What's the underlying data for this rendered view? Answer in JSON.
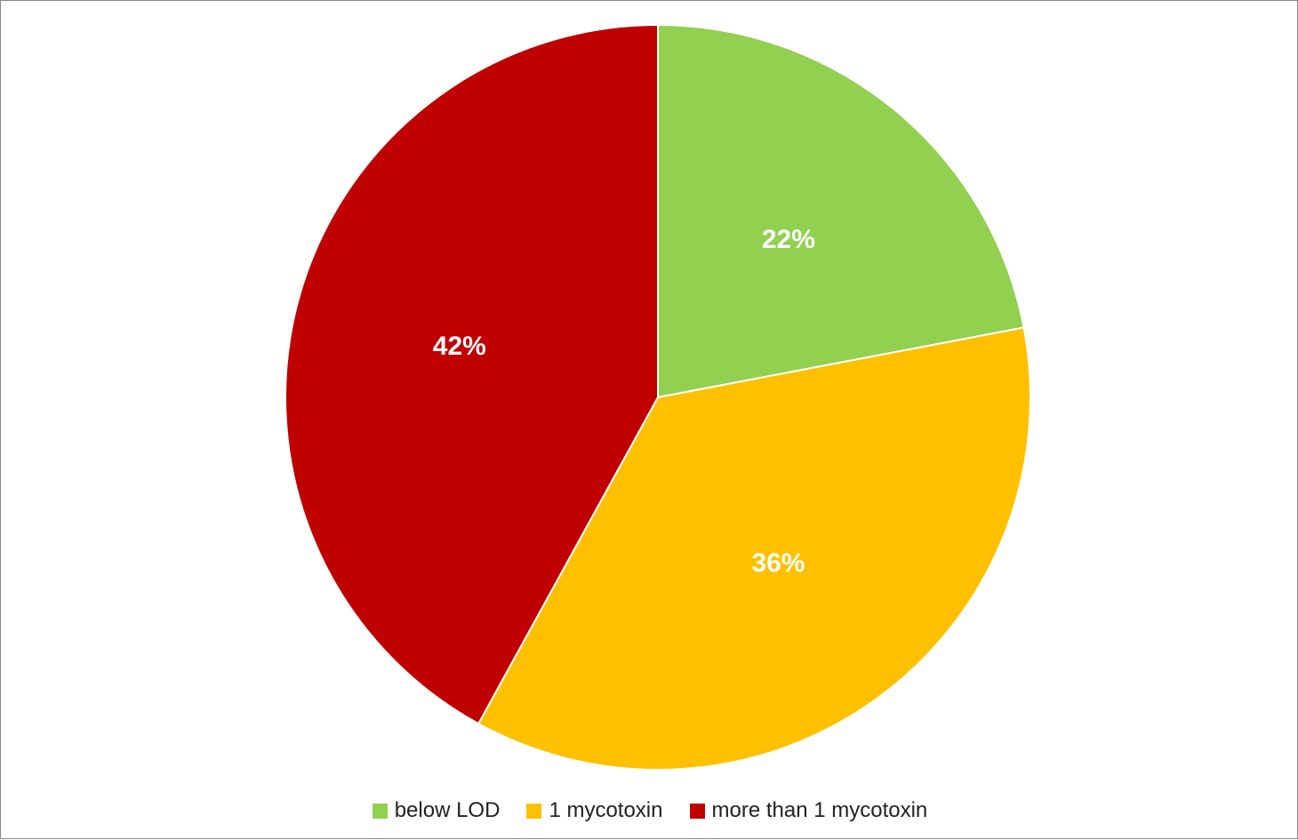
{
  "chart_data": {
    "type": "pie",
    "title": "",
    "categories": [
      "below LOD",
      "1 mycotoxin",
      "more than 1 mycotoxin"
    ],
    "values": [
      22,
      36,
      42
    ],
    "labels": [
      "22%",
      "36%",
      "42%"
    ],
    "unit": "%",
    "colors": [
      "#92d050",
      "#ffc000",
      "#c00000"
    ],
    "start_angle": "12 o'clock",
    "direction": "clockwise",
    "legend_position": "bottom"
  }
}
